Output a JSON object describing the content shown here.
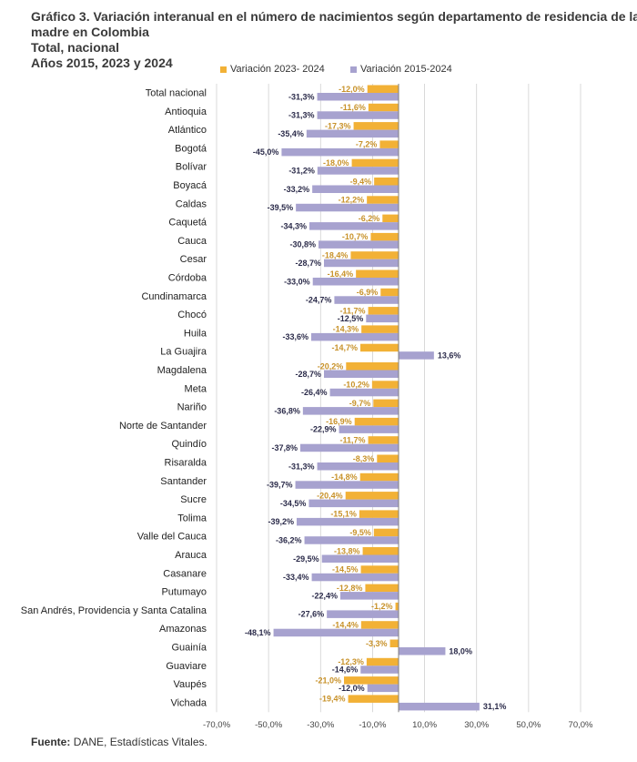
{
  "title": {
    "line1": "Gráfico 3. Variación interanual en el número de nacimientos según departamento de residencia de la",
    "line2": "madre en Colombia",
    "line3": "Total, nacional",
    "line4": "Años 2015, 2023 y 2024"
  },
  "source": {
    "label": "Fuente:",
    "text": "DANE, Estadísticas Vitales."
  },
  "colors": {
    "series1": "#F2B136",
    "series2": "#A7A2CF",
    "label1": "#C8922A",
    "label2": "#2B2B4A",
    "grid": "#D0D0D0",
    "axis": "#7F7F7F"
  },
  "chart_data": {
    "type": "bar",
    "orientation": "horizontal",
    "title": "Variación interanual en el número de nacimientos según departamento de residencia de la madre en Colombia",
    "xlabel": "",
    "ylabel": "",
    "xlim": [
      -70,
      70
    ],
    "x_ticks": [
      -70,
      -50,
      -30,
      -10,
      10,
      30,
      50,
      70
    ],
    "x_tick_labels": [
      "-70,0%",
      "-50,0%",
      "-30,0%",
      "-10,0%",
      "10,0%",
      "30,0%",
      "50,0%",
      "70,0%"
    ],
    "legend_position": "top-right",
    "categories": [
      "Total nacional",
      "Antioquia",
      "Atlántico",
      "Bogotá",
      "Bolívar",
      "Boyacá",
      "Caldas",
      "Caquetá",
      "Cauca",
      "Cesar",
      "Córdoba",
      "Cundinamarca",
      "Chocó",
      "Huila",
      "La Guajira",
      "Magdalena",
      "Meta",
      "Nariño",
      "Norte de Santander",
      "Quindío",
      "Risaralda",
      "Santander",
      "Sucre",
      "Tolima",
      "Valle del Cauca",
      "Arauca",
      "Casanare",
      "Putumayo",
      "San Andrés, Providencia y Santa Catalina",
      "Amazonas",
      "Guainía",
      "Guaviare",
      "Vaupés",
      "Vichada"
    ],
    "series": [
      {
        "name": "Variación 2023- 2024",
        "values": [
          -12.0,
          -11.6,
          -17.3,
          -7.2,
          -18.0,
          -9.4,
          -12.2,
          -6.2,
          -10.7,
          -18.4,
          -16.4,
          -6.9,
          -11.7,
          -14.3,
          -14.7,
          -20.2,
          -10.2,
          -9.7,
          -16.9,
          -11.7,
          -8.3,
          -14.8,
          -20.4,
          -15.1,
          -9.5,
          -13.8,
          -14.5,
          -12.8,
          -1.2,
          -14.4,
          -3.3,
          -12.3,
          -21.0,
          -19.4
        ],
        "labels": [
          "-12,0%",
          "-11,6%",
          "-17,3%",
          "-7,2%",
          "-18,0%",
          "-9,4%",
          "-12,2%",
          "-6,2%",
          "-10,7%",
          "-18,4%",
          "-16,4%",
          "-6,9%",
          "-11,7%",
          "-14,3%",
          "-14,7%",
          "-20,2%",
          "-10,2%",
          "-9,7%",
          "-16,9%",
          "-11,7%",
          "-8,3%",
          "-14,8%",
          "-20,4%",
          "-15,1%",
          "-9,5%",
          "-13,8%",
          "-14,5%",
          "-12,8%",
          "-1,2%",
          "-14,4%",
          "-3,3%",
          "-12,3%",
          "-21,0%",
          "-19,4%"
        ]
      },
      {
        "name": "Variación 2015-2024",
        "values": [
          -31.3,
          -31.3,
          -35.4,
          -45.0,
          -31.2,
          -33.2,
          -39.5,
          -34.3,
          -30.8,
          -28.7,
          -33.0,
          -24.7,
          -12.5,
          -33.6,
          13.6,
          -28.7,
          -26.4,
          -36.8,
          -22.9,
          -37.8,
          -31.3,
          -39.7,
          -34.5,
          -39.2,
          -36.2,
          -29.5,
          -33.4,
          -22.4,
          -27.6,
          -48.1,
          18.0,
          -14.6,
          -12.0,
          31.1
        ],
        "labels": [
          "-31,3%",
          "-31,3%",
          "-35,4%",
          "-45,0%",
          "-31,2%",
          "-33,2%",
          "-39,5%",
          "-34,3%",
          "-30,8%",
          "-28,7%",
          "-33,0%",
          "-24,7%",
          "-12,5%",
          "-33,6%",
          "13,6%",
          "-28,7%",
          "-26,4%",
          "-36,8%",
          "-22,9%",
          "-37,8%",
          "-31,3%",
          "-39,7%",
          "-34,5%",
          "-39,2%",
          "-36,2%",
          "-29,5%",
          "-33,4%",
          "-22,4%",
          "-27,6%",
          "-48,1%",
          "18,0%",
          "-14,6%",
          "-12,0%",
          "31,1%"
        ]
      }
    ]
  }
}
